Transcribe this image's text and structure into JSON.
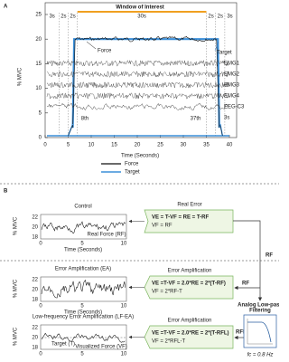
{
  "panel_a": {
    "label": "A",
    "window_title": "Window of Interest",
    "segments": [
      "3s",
      "2s",
      "2s",
      "30s",
      "2s",
      "2s",
      "3s"
    ],
    "y_axis_label": "% MVC",
    "x_axis_label": "Time (Seconds)",
    "y_ticks": [
      25,
      20,
      15,
      10,
      5,
      0
    ],
    "x_ticks": [
      0,
      5,
      10,
      15,
      20,
      25,
      30,
      35,
      40
    ],
    "force_label": "Force",
    "target_label": "Target",
    "channels": [
      "EMG1",
      "EMG2",
      "EMG3",
      "EMG4",
      "EEG-C3"
    ],
    "trial_labels": [
      "8th",
      "37th"
    ],
    "end_label": "3s",
    "legend": [
      "Force",
      "Target"
    ]
  },
  "panel_b": {
    "label": "B",
    "rows": [
      {
        "title": "Control",
        "y_axis_label": "% MVC",
        "y_ticks": [
          22,
          20,
          18
        ],
        "x_ticks": [
          0,
          5,
          10
        ],
        "x_axis_label": "Time (Seconds)",
        "annotations": [
          "Real Force (RF)"
        ]
      },
      {
        "title": "Error Amplification (EA)",
        "y_axis_label": "% MVC",
        "y_ticks": [
          22,
          20,
          18
        ],
        "x_ticks": [
          0,
          5,
          10
        ],
        "x_axis_label": "Time (Seconds)",
        "annotations": []
      },
      {
        "title": "Low-frequency Error Amplification (LF-EA)",
        "y_axis_label": "% MVC",
        "y_ticks": [
          22,
          20,
          18
        ],
        "x_ticks": [
          0,
          5,
          10
        ],
        "annotations": [
          "Target (T)",
          "Visualized Force (VF)"
        ]
      }
    ],
    "boxes": [
      {
        "title": "Real Error",
        "lines": [
          "VE = T-VF = RE = T-RF",
          "VF = RF"
        ]
      },
      {
        "title": "Error Amplification",
        "lines": [
          "VE =T-VF = 2.0*RE = 2*(T-RF)",
          "VF = 2*RF-T"
        ]
      },
      {
        "title": "Error Amplification",
        "lines": [
          "VE =T-VF = 2.0*RE = 2*(T-RFL)",
          "VF = 2*RFL-T"
        ]
      }
    ],
    "signal_labels": [
      "RF",
      "RF",
      "RFL"
    ],
    "filter": {
      "title_lines": [
        "Analog Low-pass",
        "Filtering"
      ],
      "cutoff": "fc = 0.8 Hz"
    }
  }
}
